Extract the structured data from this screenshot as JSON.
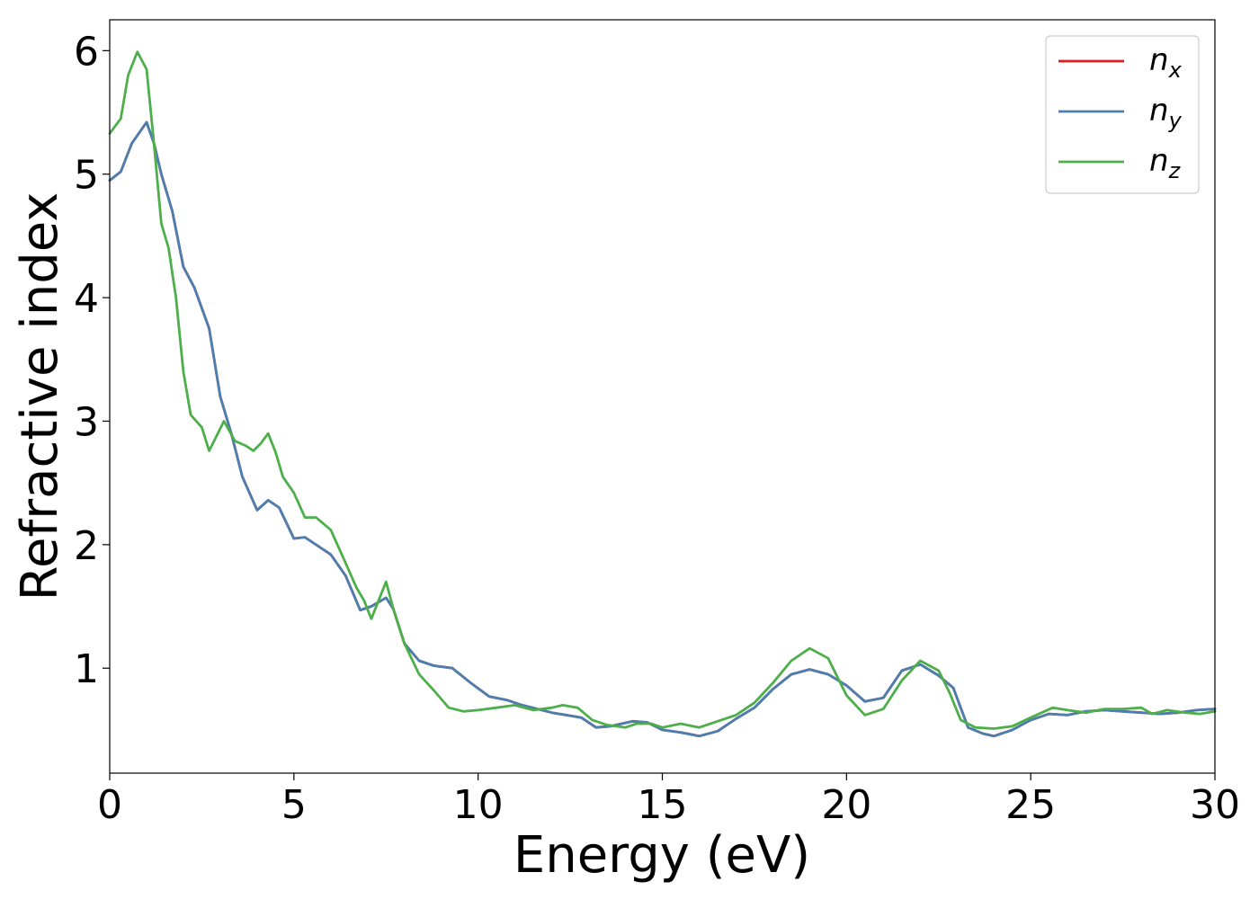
{
  "chart_data": {
    "type": "line",
    "title": "",
    "xlabel": "Energy (eV)",
    "ylabel": "Refractive index",
    "xlim": [
      0,
      30
    ],
    "ylim": [
      0.15,
      6.25
    ],
    "xticks": [
      0,
      5,
      10,
      15,
      20,
      25,
      30
    ],
    "yticks": [
      1,
      2,
      3,
      4,
      5,
      6
    ],
    "grid": false,
    "legend_position": "top-right",
    "series": [
      {
        "name": "n_x",
        "label_base": "n",
        "label_sub": "x",
        "color": "#e41a1c",
        "points": [
          [
            0,
            4.95
          ],
          [
            0.3,
            5.02
          ],
          [
            0.6,
            5.25
          ],
          [
            1.0,
            5.42
          ],
          [
            1.2,
            5.25
          ],
          [
            1.4,
            5.0
          ],
          [
            1.7,
            4.7
          ],
          [
            2.0,
            4.25
          ],
          [
            2.3,
            4.08
          ],
          [
            2.7,
            3.75
          ],
          [
            3.0,
            3.2
          ],
          [
            3.3,
            2.9
          ],
          [
            3.6,
            2.55
          ],
          [
            4.0,
            2.28
          ],
          [
            4.3,
            2.36
          ],
          [
            4.6,
            2.3
          ],
          [
            5.0,
            2.05
          ],
          [
            5.3,
            2.06
          ],
          [
            5.6,
            2.0
          ],
          [
            6.0,
            1.92
          ],
          [
            6.4,
            1.75
          ],
          [
            6.8,
            1.47
          ],
          [
            7.1,
            1.5
          ],
          [
            7.5,
            1.57
          ],
          [
            7.7,
            1.48
          ],
          [
            8.0,
            1.2
          ],
          [
            8.4,
            1.06
          ],
          [
            8.8,
            1.02
          ],
          [
            9.3,
            1.0
          ],
          [
            9.8,
            0.88
          ],
          [
            10.3,
            0.77
          ],
          [
            10.8,
            0.74
          ],
          [
            11.2,
            0.7
          ],
          [
            12.0,
            0.64
          ],
          [
            12.8,
            0.6
          ],
          [
            13.2,
            0.52
          ],
          [
            13.6,
            0.53
          ],
          [
            14.2,
            0.57
          ],
          [
            14.6,
            0.56
          ],
          [
            15.0,
            0.5
          ],
          [
            15.5,
            0.48
          ],
          [
            16.0,
            0.45
          ],
          [
            16.5,
            0.49
          ],
          [
            17.0,
            0.59
          ],
          [
            17.5,
            0.68
          ],
          [
            18.0,
            0.83
          ],
          [
            18.5,
            0.95
          ],
          [
            19.0,
            0.99
          ],
          [
            19.5,
            0.95
          ],
          [
            20.0,
            0.86
          ],
          [
            20.5,
            0.73
          ],
          [
            21.0,
            0.76
          ],
          [
            21.5,
            0.98
          ],
          [
            22.0,
            1.03
          ],
          [
            22.5,
            0.94
          ],
          [
            22.9,
            0.84
          ],
          [
            23.3,
            0.52
          ],
          [
            23.7,
            0.47
          ],
          [
            24.0,
            0.45
          ],
          [
            24.5,
            0.5
          ],
          [
            25.0,
            0.58
          ],
          [
            25.5,
            0.63
          ],
          [
            26.0,
            0.62
          ],
          [
            26.5,
            0.65
          ],
          [
            27.0,
            0.66
          ],
          [
            27.5,
            0.65
          ],
          [
            28.0,
            0.64
          ],
          [
            28.5,
            0.63
          ],
          [
            29.0,
            0.64
          ],
          [
            29.5,
            0.66
          ],
          [
            30.0,
            0.67
          ]
        ]
      },
      {
        "name": "n_y",
        "label_base": "n",
        "label_sub": "y",
        "color": "#4a7fb0",
        "points": [
          [
            0,
            4.95
          ],
          [
            0.3,
            5.02
          ],
          [
            0.6,
            5.25
          ],
          [
            1.0,
            5.42
          ],
          [
            1.2,
            5.25
          ],
          [
            1.4,
            5.0
          ],
          [
            1.7,
            4.7
          ],
          [
            2.0,
            4.25
          ],
          [
            2.3,
            4.08
          ],
          [
            2.7,
            3.75
          ],
          [
            3.0,
            3.2
          ],
          [
            3.3,
            2.9
          ],
          [
            3.6,
            2.55
          ],
          [
            4.0,
            2.28
          ],
          [
            4.3,
            2.36
          ],
          [
            4.6,
            2.3
          ],
          [
            5.0,
            2.05
          ],
          [
            5.3,
            2.06
          ],
          [
            5.6,
            2.0
          ],
          [
            6.0,
            1.92
          ],
          [
            6.4,
            1.75
          ],
          [
            6.8,
            1.47
          ],
          [
            7.1,
            1.5
          ],
          [
            7.5,
            1.57
          ],
          [
            7.7,
            1.48
          ],
          [
            8.0,
            1.2
          ],
          [
            8.4,
            1.06
          ],
          [
            8.8,
            1.02
          ],
          [
            9.3,
            1.0
          ],
          [
            9.8,
            0.88
          ],
          [
            10.3,
            0.77
          ],
          [
            10.8,
            0.74
          ],
          [
            11.2,
            0.7
          ],
          [
            12.0,
            0.64
          ],
          [
            12.8,
            0.6
          ],
          [
            13.2,
            0.52
          ],
          [
            13.6,
            0.53
          ],
          [
            14.2,
            0.57
          ],
          [
            14.6,
            0.56
          ],
          [
            15.0,
            0.5
          ],
          [
            15.5,
            0.48
          ],
          [
            16.0,
            0.45
          ],
          [
            16.5,
            0.49
          ],
          [
            17.0,
            0.59
          ],
          [
            17.5,
            0.68
          ],
          [
            18.0,
            0.83
          ],
          [
            18.5,
            0.95
          ],
          [
            19.0,
            0.99
          ],
          [
            19.5,
            0.95
          ],
          [
            20.0,
            0.86
          ],
          [
            20.5,
            0.73
          ],
          [
            21.0,
            0.76
          ],
          [
            21.5,
            0.98
          ],
          [
            22.0,
            1.03
          ],
          [
            22.5,
            0.94
          ],
          [
            22.9,
            0.84
          ],
          [
            23.3,
            0.52
          ],
          [
            23.7,
            0.47
          ],
          [
            24.0,
            0.45
          ],
          [
            24.5,
            0.5
          ],
          [
            25.0,
            0.58
          ],
          [
            25.5,
            0.63
          ],
          [
            26.0,
            0.62
          ],
          [
            26.5,
            0.65
          ],
          [
            27.0,
            0.66
          ],
          [
            27.5,
            0.65
          ],
          [
            28.0,
            0.64
          ],
          [
            28.5,
            0.63
          ],
          [
            29.0,
            0.64
          ],
          [
            29.5,
            0.66
          ],
          [
            30.0,
            0.67
          ]
        ]
      },
      {
        "name": "n_z",
        "label_base": "n",
        "label_sub": "z",
        "color": "#4daf4a",
        "points": [
          [
            0,
            5.33
          ],
          [
            0.3,
            5.45
          ],
          [
            0.5,
            5.8
          ],
          [
            0.75,
            5.99
          ],
          [
            1.0,
            5.85
          ],
          [
            1.2,
            5.25
          ],
          [
            1.4,
            4.6
          ],
          [
            1.6,
            4.4
          ],
          [
            1.8,
            4.0
          ],
          [
            2.0,
            3.4
          ],
          [
            2.2,
            3.05
          ],
          [
            2.5,
            2.95
          ],
          [
            2.7,
            2.76
          ],
          [
            2.9,
            2.88
          ],
          [
            3.1,
            3.0
          ],
          [
            3.4,
            2.84
          ],
          [
            3.7,
            2.8
          ],
          [
            3.9,
            2.76
          ],
          [
            4.1,
            2.82
          ],
          [
            4.3,
            2.9
          ],
          [
            4.5,
            2.75
          ],
          [
            4.7,
            2.55
          ],
          [
            5.0,
            2.42
          ],
          [
            5.3,
            2.22
          ],
          [
            5.6,
            2.22
          ],
          [
            6.0,
            2.12
          ],
          [
            6.3,
            1.92
          ],
          [
            6.7,
            1.65
          ],
          [
            6.9,
            1.55
          ],
          [
            7.1,
            1.4
          ],
          [
            7.3,
            1.55
          ],
          [
            7.5,
            1.7
          ],
          [
            7.7,
            1.48
          ],
          [
            8.0,
            1.2
          ],
          [
            8.4,
            0.95
          ],
          [
            8.8,
            0.82
          ],
          [
            9.2,
            0.68
          ],
          [
            9.6,
            0.65
          ],
          [
            10.0,
            0.66
          ],
          [
            10.5,
            0.68
          ],
          [
            11.0,
            0.7
          ],
          [
            11.5,
            0.66
          ],
          [
            12.0,
            0.68
          ],
          [
            12.3,
            0.7
          ],
          [
            12.7,
            0.68
          ],
          [
            13.1,
            0.58
          ],
          [
            13.5,
            0.54
          ],
          [
            14.0,
            0.52
          ],
          [
            14.3,
            0.55
          ],
          [
            14.7,
            0.55
          ],
          [
            15.0,
            0.52
          ],
          [
            15.5,
            0.55
          ],
          [
            16.0,
            0.52
          ],
          [
            16.5,
            0.57
          ],
          [
            17.0,
            0.62
          ],
          [
            17.5,
            0.72
          ],
          [
            18.0,
            0.88
          ],
          [
            18.5,
            1.06
          ],
          [
            19.0,
            1.16
          ],
          [
            19.5,
            1.08
          ],
          [
            20.0,
            0.78
          ],
          [
            20.5,
            0.62
          ],
          [
            21.0,
            0.67
          ],
          [
            21.5,
            0.9
          ],
          [
            22.0,
            1.06
          ],
          [
            22.5,
            0.98
          ],
          [
            22.8,
            0.8
          ],
          [
            23.1,
            0.58
          ],
          [
            23.5,
            0.52
          ],
          [
            24.0,
            0.51
          ],
          [
            24.5,
            0.53
          ],
          [
            25.0,
            0.6
          ],
          [
            25.6,
            0.68
          ],
          [
            26.0,
            0.66
          ],
          [
            26.5,
            0.64
          ],
          [
            27.0,
            0.67
          ],
          [
            27.5,
            0.67
          ],
          [
            28.0,
            0.68
          ],
          [
            28.3,
            0.63
          ],
          [
            28.7,
            0.66
          ],
          [
            29.2,
            0.64
          ],
          [
            29.6,
            0.63
          ],
          [
            30.0,
            0.65
          ]
        ]
      }
    ]
  }
}
